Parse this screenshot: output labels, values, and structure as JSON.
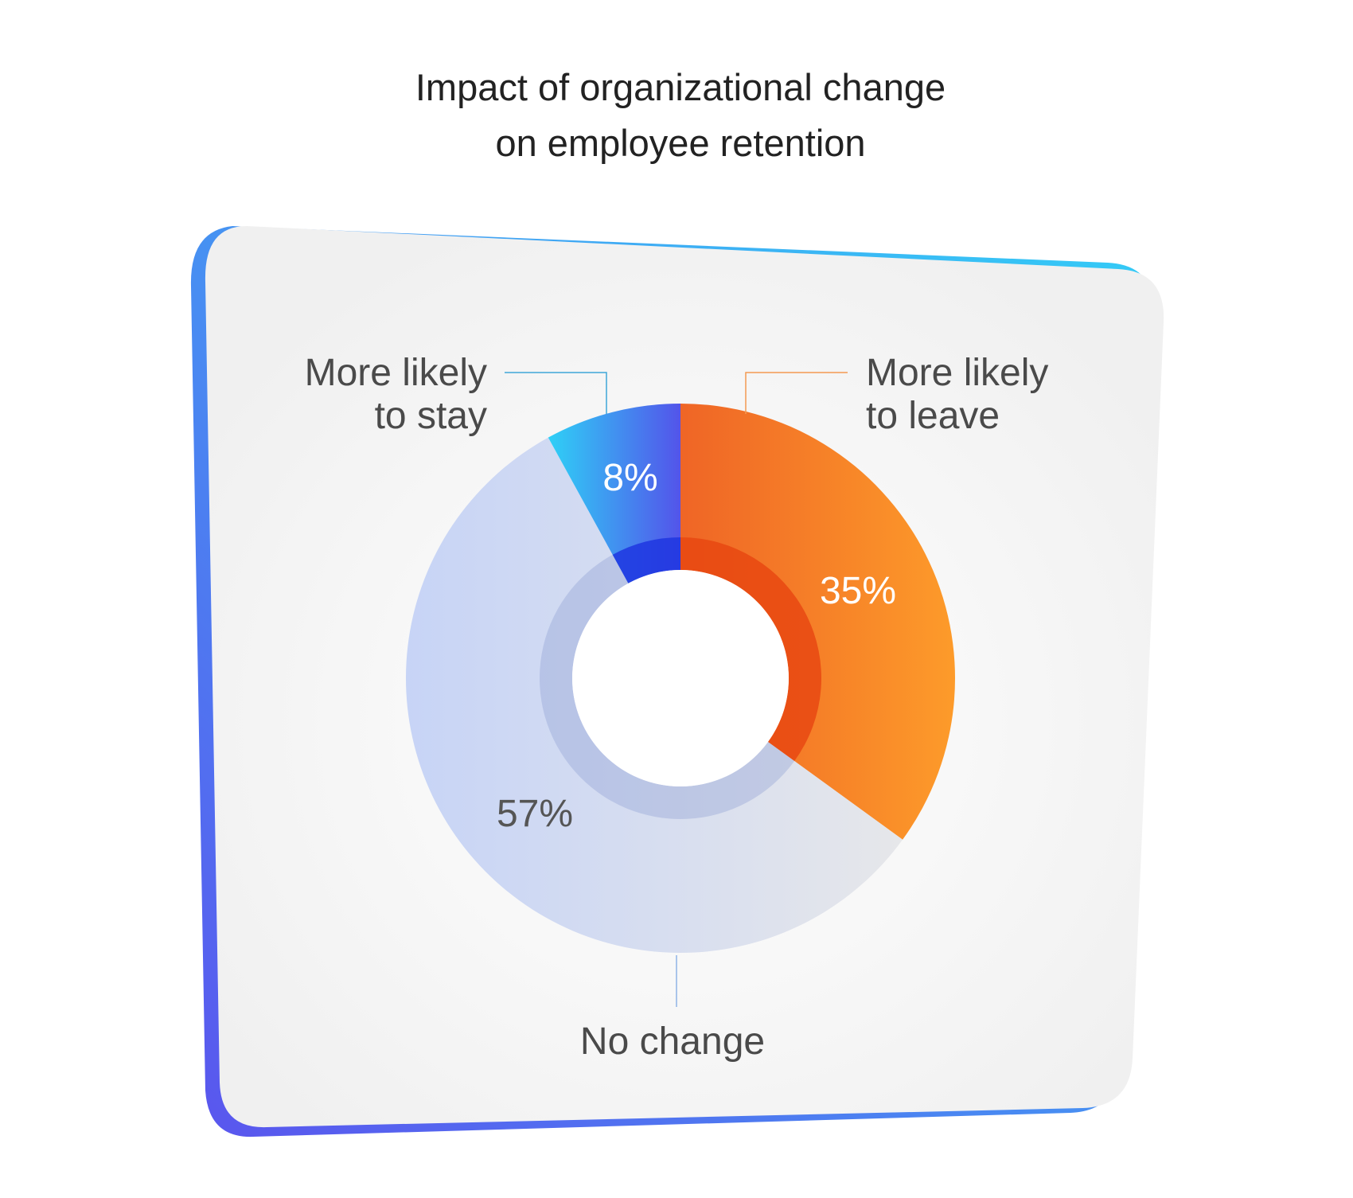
{
  "chart_data": {
    "type": "pie",
    "title_lines": [
      "Impact of organizational change",
      "on employee retention"
    ],
    "slices": [
      {
        "label_lines": [
          "More likely",
          "to leave"
        ],
        "value": 35,
        "value_label": "35%"
      },
      {
        "label_lines": [
          "No change"
        ],
        "value": 57,
        "value_label": "57%"
      },
      {
        "label_lines": [
          "More likely",
          "to stay"
        ],
        "value": 8,
        "value_label": "8%"
      }
    ],
    "donut": true
  },
  "colors": {
    "leave": [
      "#ef6526",
      "#fd9b2a"
    ],
    "leave_inner": "#e84812",
    "no_change": [
      "#c7d4f6",
      "#e6e7ea"
    ],
    "stay": [
      "#2fd0f6",
      "#5354ea"
    ],
    "stay_inner": "#1e36e0",
    "frame": [
      "#5a55ee",
      "#33cdf6"
    ],
    "card": "#f3f3f3",
    "title": "#222222",
    "label": "#4a4a4a"
  }
}
